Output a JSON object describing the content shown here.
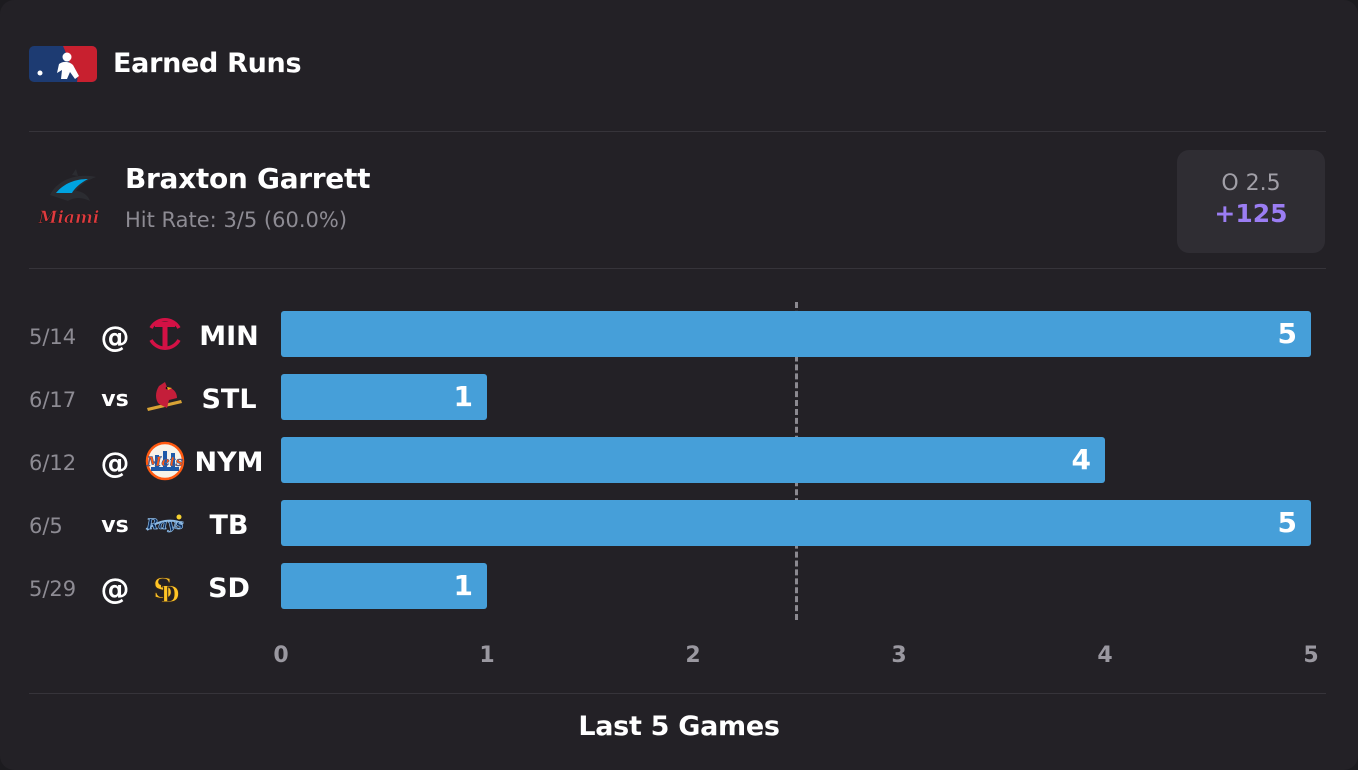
{
  "header": {
    "title": "Earned Runs",
    "league_icon": "mlb-logo"
  },
  "player": {
    "name": "Braxton Garrett",
    "hit_rate": "Hit Rate: 3/5 (60.0%)",
    "team_icon": "marlins-logo"
  },
  "odds": {
    "line": "O 2.5",
    "price": "+125",
    "price_color": "#9b7df3"
  },
  "chart_data": {
    "type": "bar",
    "orientation": "horizontal",
    "categories": [
      "5/14 @ MIN",
      "6/17 vs STL",
      "6/12 @ NYM",
      "6/5 vs TB",
      "5/29 @ SD"
    ],
    "values": [
      5,
      1,
      4,
      5,
      1
    ],
    "xlim": [
      0,
      5
    ],
    "xticks": [
      "0",
      "1",
      "2",
      "3",
      "4",
      "5"
    ],
    "threshold": 2.5,
    "bar_color": "#469fd9",
    "xlabel": "Last 5 Games",
    "grid": false
  },
  "games": [
    {
      "date": "5/14",
      "location": "@",
      "team": "MIN",
      "team_icon": "twins-logo",
      "value": 5
    },
    {
      "date": "6/17",
      "location": "vs",
      "team": "STL",
      "team_icon": "cardinals-logo",
      "value": 1
    },
    {
      "date": "6/12",
      "location": "@",
      "team": "NYM",
      "team_icon": "mets-logo",
      "value": 4
    },
    {
      "date": "6/5",
      "location": "vs",
      "team": "TB",
      "team_icon": "rays-logo",
      "value": 5
    },
    {
      "date": "5/29",
      "location": "@",
      "team": "SD",
      "team_icon": "padres-logo",
      "value": 1
    }
  ],
  "footer": {
    "label": "Last 5 Games"
  }
}
